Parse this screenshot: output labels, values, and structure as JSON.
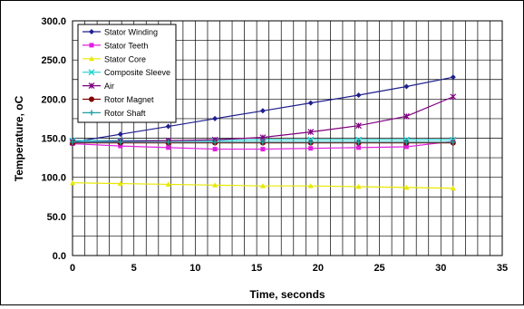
{
  "chart_data": {
    "type": "line",
    "xlabel": "Time, seconds",
    "ylabel": "Temperature, oC",
    "xlim": [
      0,
      35
    ],
    "ylim": [
      0,
      300
    ],
    "x_ticks": [
      "0",
      "5",
      "10",
      "15",
      "20",
      "25",
      "30",
      "35"
    ],
    "y_ticks": [
      "0.0",
      "50.0",
      "100.0",
      "150.0",
      "200.0",
      "250.0",
      "300.0"
    ],
    "grid": true,
    "legend_position": "top-left",
    "x": [
      0,
      3.9,
      7.8,
      11.6,
      15.5,
      19.4,
      23.3,
      27.2,
      31.0
    ],
    "series": [
      {
        "name": "Stator Winding",
        "color": "#1f1f8f",
        "marker": "diamond",
        "values": [
          145,
          155,
          165,
          175,
          185,
          195,
          205,
          216,
          228
        ]
      },
      {
        "name": "Stator Teeth",
        "color": "#e020e0",
        "marker": "square",
        "values": [
          143,
          140,
          138,
          136,
          136,
          137,
          138,
          139,
          146
        ]
      },
      {
        "name": "Stator Core",
        "color": "#e8e800",
        "marker": "triangle",
        "values": [
          93,
          92,
          91,
          90,
          89,
          89,
          88,
          87,
          86
        ]
      },
      {
        "name": "Composite Sleeve",
        "color": "#20d0d0",
        "marker": "x",
        "values": [
          147,
          147,
          147,
          147,
          148,
          148,
          148,
          148,
          148
        ]
      },
      {
        "name": "Air",
        "color": "#800080",
        "marker": "star",
        "values": [
          145,
          146,
          147,
          148,
          151,
          158,
          166,
          178,
          203
        ]
      },
      {
        "name": "Rotor Magnet",
        "color": "#800000",
        "marker": "circle",
        "values": [
          144,
          144,
          144,
          144,
          144,
          144,
          144,
          144,
          144
        ]
      },
      {
        "name": "Rotor Shaft",
        "color": "#20a0a0",
        "marker": "plus",
        "values": [
          145,
          145,
          145,
          145,
          145,
          145,
          145,
          145,
          145
        ]
      }
    ]
  }
}
